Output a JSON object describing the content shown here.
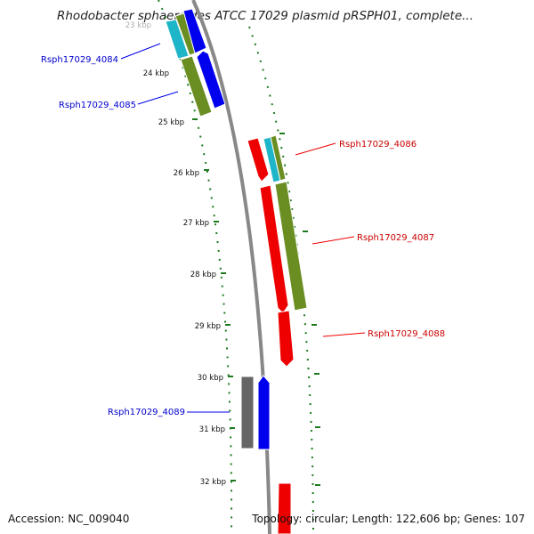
{
  "title": "Rhodobacter sphaeroides ATCC 17029 plasmid pRSPH01, complete...",
  "accession": "Accession: NC_009040",
  "summary": "Topology: circular; Length: 122,606 bp; Genes: 107",
  "colors": {
    "backbone": "#888888",
    "tick": "#1e7a1e",
    "forward_gene": "#0000ee",
    "reverse_gene": "#ee0000",
    "cds_feature": "#6b8e23",
    "trna_feature": "#1fb5c8",
    "misc_feature": "#666666"
  },
  "ticks": [
    {
      "label": "23 kbp"
    },
    {
      "label": "24 kbp"
    },
    {
      "label": "25 kbp"
    },
    {
      "label": "26 kbp"
    },
    {
      "label": "27 kbp"
    },
    {
      "label": "28 kbp"
    },
    {
      "label": "29 kbp"
    },
    {
      "label": "30 kbp"
    },
    {
      "label": "31 kbp"
    },
    {
      "label": "32 kbp"
    }
  ],
  "gene_labels": [
    {
      "label": "Rsph17029_4084",
      "strand": "forward"
    },
    {
      "label": "Rsph17029_4085",
      "strand": "forward"
    },
    {
      "label": "Rsph17029_4086",
      "strand": "reverse"
    },
    {
      "label": "Rsph17029_4087",
      "strand": "reverse"
    },
    {
      "label": "Rsph17029_4088",
      "strand": "reverse"
    },
    {
      "label": "Rsph17029_4089",
      "strand": "forward"
    }
  ]
}
